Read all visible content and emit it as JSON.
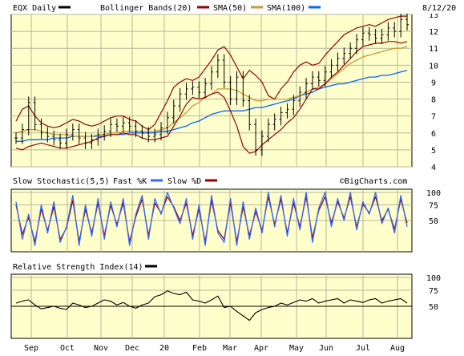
{
  "chart_data": {
    "type": "stock-chart",
    "date": "8/12/20",
    "watermark": "©BigCharts.com",
    "x_tick_labels": [
      "Sep",
      "Oct",
      "Nov",
      "Dec",
      "20",
      "Feb",
      "Mar",
      "Apr",
      "May",
      "Jun",
      "Jul",
      "Aug"
    ],
    "colors": {
      "background": "#ffffcc",
      "price_bars": "#000000",
      "bollinger": "#990000",
      "sma50": "#cc9933",
      "sma100": "#0066ff",
      "fast_k": "#3366ff",
      "slow_d": "#990000",
      "rsi": "#000000"
    },
    "panels": [
      {
        "id": "price",
        "legend": [
          {
            "label": "EQX Daily",
            "swatch_color": "#000000"
          },
          {
            "label": "Bollinger Bands(20)",
            "swatch_color": "#990000"
          },
          {
            "label": "SMA(50)",
            "swatch_color": "#cc9933"
          },
          {
            "label": "SMA(100)",
            "swatch_color": "#0066ff"
          }
        ],
        "y_ticks": [
          "4",
          "5",
          "6",
          "7",
          "8",
          "9",
          "10",
          "11",
          "12",
          "13"
        ],
        "ylim": [
          4,
          13
        ],
        "series": [
          {
            "name": "EQX Daily",
            "type": "ohlc-approx",
            "values": [
              5.7,
              6.2,
              7.8,
              6.5,
              6.0,
              5.8,
              5.6,
              5.4,
              5.9,
              6.2,
              5.7,
              5.4,
              5.6,
              5.9,
              6.1,
              6.5,
              6.4,
              6.6,
              6.4,
              6.1,
              6.0,
              5.8,
              5.9,
              6.3,
              6.9,
              7.6,
              8.3,
              8.6,
              8.7,
              8.4,
              8.9,
              9.6,
              10.3,
              9.0,
              8.0,
              9.3,
              7.9,
              6.5,
              5.0,
              5.8,
              6.5,
              6.8,
              7.2,
              7.4,
              7.9,
              8.4,
              8.9,
              9.3,
              9.1,
              9.6,
              10.0,
              10.4,
              10.7,
              11.0,
              11.5,
              11.9,
              11.8,
              11.6,
              11.8,
              12.2,
              12.0,
              12.7,
              12.4
            ]
          },
          {
            "name": "Bollinger Bands(20) upper",
            "values": [
              6.7,
              7.4,
              7.6,
              7.0,
              6.6,
              6.4,
              6.3,
              6.4,
              6.6,
              6.8,
              6.7,
              6.5,
              6.4,
              6.5,
              6.7,
              6.9,
              7.0,
              7.0,
              6.8,
              6.7,
              6.4,
              6.2,
              6.5,
              7.2,
              7.9,
              8.7,
              9.0,
              9.2,
              9.1,
              9.3,
              9.8,
              10.3,
              10.9,
              11.1,
              10.6,
              9.9,
              9.2,
              9.7,
              9.4,
              9.0,
              8.2,
              8.0,
              8.6,
              9.0,
              9.6,
              10.0,
              10.2,
              10.0,
              10.1,
              10.6,
              11.0,
              11.4,
              11.8,
              12.0,
              12.2,
              12.3,
              12.4,
              12.3,
              12.5,
              12.7,
              12.8,
              12.9,
              12.9
            ]
          },
          {
            "name": "Bollinger Bands(20) lower",
            "values": [
              5.1,
              5.0,
              5.2,
              5.3,
              5.4,
              5.3,
              5.2,
              5.1,
              5.1,
              5.2,
              5.3,
              5.4,
              5.5,
              5.7,
              5.8,
              5.9,
              5.9,
              6.0,
              5.9,
              5.9,
              5.7,
              5.6,
              5.6,
              5.7,
              5.8,
              6.4,
              7.0,
              7.7,
              8.1,
              8.0,
              8.1,
              8.3,
              8.4,
              8.1,
              7.3,
              6.4,
              5.2,
              4.8,
              4.9,
              5.3,
              5.6,
              5.9,
              6.2,
              6.6,
              6.9,
              7.4,
              8.0,
              8.6,
              8.6,
              8.9,
              9.3,
              9.6,
              10.0,
              10.4,
              10.8,
              11.1,
              11.2,
              11.3,
              11.3,
              11.4,
              11.4,
              11.3,
              11.4
            ]
          },
          {
            "name": "SMA(50)",
            "values": [
              6.0,
              6.1,
              6.2,
              6.2,
              6.1,
              6.0,
              5.9,
              5.9,
              5.9,
              5.8,
              5.8,
              5.8,
              5.8,
              5.9,
              5.9,
              6.0,
              6.0,
              6.1,
              6.1,
              6.1,
              6.1,
              6.1,
              6.1,
              6.2,
              6.3,
              6.6,
              6.9,
              7.2,
              7.6,
              7.8,
              8.1,
              8.3,
              8.6,
              8.6,
              8.6,
              8.5,
              8.3,
              8.1,
              7.9,
              7.9,
              8.0,
              8.0,
              8.0,
              8.0,
              8.1,
              8.2,
              8.4,
              8.6,
              8.7,
              8.9,
              9.2,
              9.5,
              9.8,
              10.1,
              10.3,
              10.5,
              10.6,
              10.7,
              10.8,
              10.9,
              11.0,
              11.0,
              11.1
            ]
          },
          {
            "name": "SMA(100)",
            "values": [
              5.5,
              5.5,
              5.6,
              5.6,
              5.6,
              5.6,
              5.7,
              5.7,
              5.7,
              5.8,
              5.8,
              5.8,
              5.8,
              5.8,
              5.8,
              5.9,
              5.9,
              5.9,
              6.0,
              6.0,
              6.0,
              6.0,
              6.0,
              6.1,
              6.1,
              6.2,
              6.3,
              6.4,
              6.6,
              6.7,
              6.9,
              7.1,
              7.2,
              7.3,
              7.3,
              7.3,
              7.3,
              7.4,
              7.5,
              7.5,
              7.6,
              7.7,
              7.8,
              7.9,
              8.0,
              8.2,
              8.3,
              8.4,
              8.6,
              8.7,
              8.8,
              8.9,
              8.9,
              9.0,
              9.1,
              9.2,
              9.3,
              9.3,
              9.4,
              9.4,
              9.5,
              9.6,
              9.7
            ]
          }
        ]
      },
      {
        "id": "stochastic",
        "legend": [
          {
            "label": "Slow Stochastic(5,5)",
            "swatch_color": ""
          },
          {
            "label": "Fast %K",
            "swatch_color": "#3366ff"
          },
          {
            "label": "Slow %D",
            "swatch_color": "#990000"
          }
        ],
        "y_ticks": [
          "50",
          "75",
          "100"
        ],
        "ylim": [
          0,
          100
        ],
        "series": [
          {
            "name": "Fast %K",
            "values": [
              80,
              20,
              60,
              10,
              75,
              30,
              80,
              15,
              40,
              90,
              10,
              75,
              25,
              85,
              20,
              80,
              40,
              85,
              10,
              60,
              90,
              20,
              85,
              60,
              95,
              70,
              45,
              85,
              20,
              75,
              10,
              90,
              30,
              15,
              85,
              10,
              80,
              20,
              70,
              30,
              95,
              40,
              90,
              25,
              85,
              35,
              95,
              15,
              70,
              95,
              40,
              85,
              50,
              95,
              35,
              80,
              60,
              95,
              45,
              70,
              30,
              90,
              40
            ]
          },
          {
            "name": "Slow %D",
            "values": [
              75,
              28,
              55,
              16,
              68,
              34,
              72,
              20,
              38,
              82,
              16,
              68,
              30,
              78,
              26,
              74,
              44,
              78,
              16,
              56,
              84,
              26,
              78,
              62,
              88,
              72,
              50,
              78,
              26,
              68,
              16,
              82,
              34,
              20,
              78,
              16,
              72,
              26,
              64,
              34,
              88,
              44,
              84,
              30,
              78,
              40,
              88,
              22,
              66,
              88,
              46,
              80,
              54,
              88,
              40,
              76,
              62,
              88,
              50,
              68,
              36,
              84,
              46
            ]
          }
        ]
      },
      {
        "id": "rsi",
        "legend": [
          {
            "label": "Relative Strength Index(14)",
            "swatch_color": "#000000"
          }
        ],
        "y_ticks": [
          "50",
          "75",
          "100"
        ],
        "ylim": [
          0,
          100
        ],
        "series": [
          {
            "name": "Relative Strength Index(14)",
            "values": [
              55,
              58,
              60,
              52,
              46,
              48,
              50,
              47,
              45,
              55,
              52,
              48,
              50,
              55,
              60,
              58,
              52,
              56,
              50,
              47,
              52,
              55,
              65,
              68,
              74,
              70,
              68,
              72,
              60,
              58,
              55,
              60,
              66,
              48,
              50,
              42,
              35,
              28,
              40,
              45,
              48,
              50,
              55,
              52,
              56,
              60,
              58,
              62,
              55,
              58,
              60,
              62,
              55,
              60,
              58,
              56,
              60,
              62,
              55,
              58,
              60,
              62,
              55
            ]
          }
        ]
      }
    ]
  }
}
